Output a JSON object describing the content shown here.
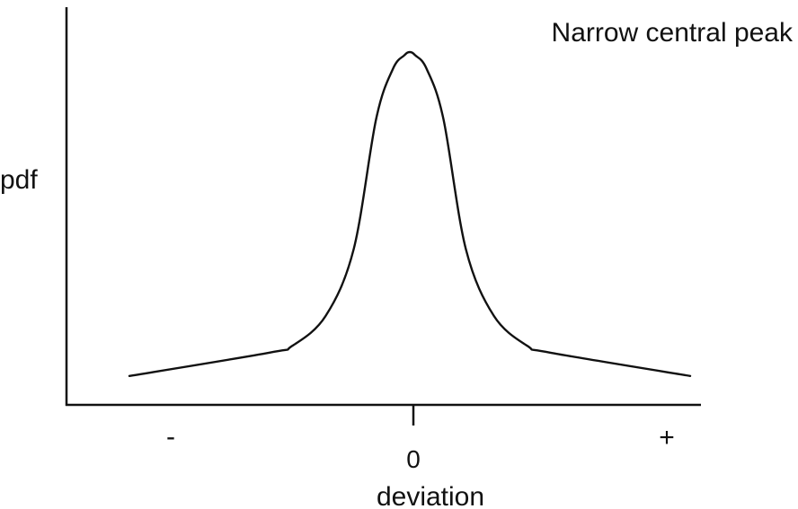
{
  "chart_data": {
    "type": "line",
    "title": "Narrow central peak",
    "xlabel": "deviation",
    "ylabel": "pdf",
    "xlim": [
      -1.2,
      1.2
    ],
    "ylim": [
      0,
      1
    ],
    "x_ticks": [
      {
        "value": -1,
        "label": "-"
      },
      {
        "value": 0,
        "label": "0"
      },
      {
        "value": 1,
        "label": "+"
      }
    ],
    "grid": false,
    "series": [
      {
        "x": [
          -1.0,
          -0.5,
          -0.42,
          -0.3,
          -0.2,
          -0.12,
          -0.06,
          -0.02,
          0.0,
          0.02,
          0.06,
          0.12,
          0.2,
          0.3,
          0.42,
          0.5,
          1.0
        ],
        "y": [
          0.03,
          0.1,
          0.12,
          0.21,
          0.41,
          0.8,
          0.95,
          0.99,
          1.0,
          0.99,
          0.95,
          0.8,
          0.41,
          0.21,
          0.12,
          0.1,
          0.03
        ]
      }
    ]
  }
}
